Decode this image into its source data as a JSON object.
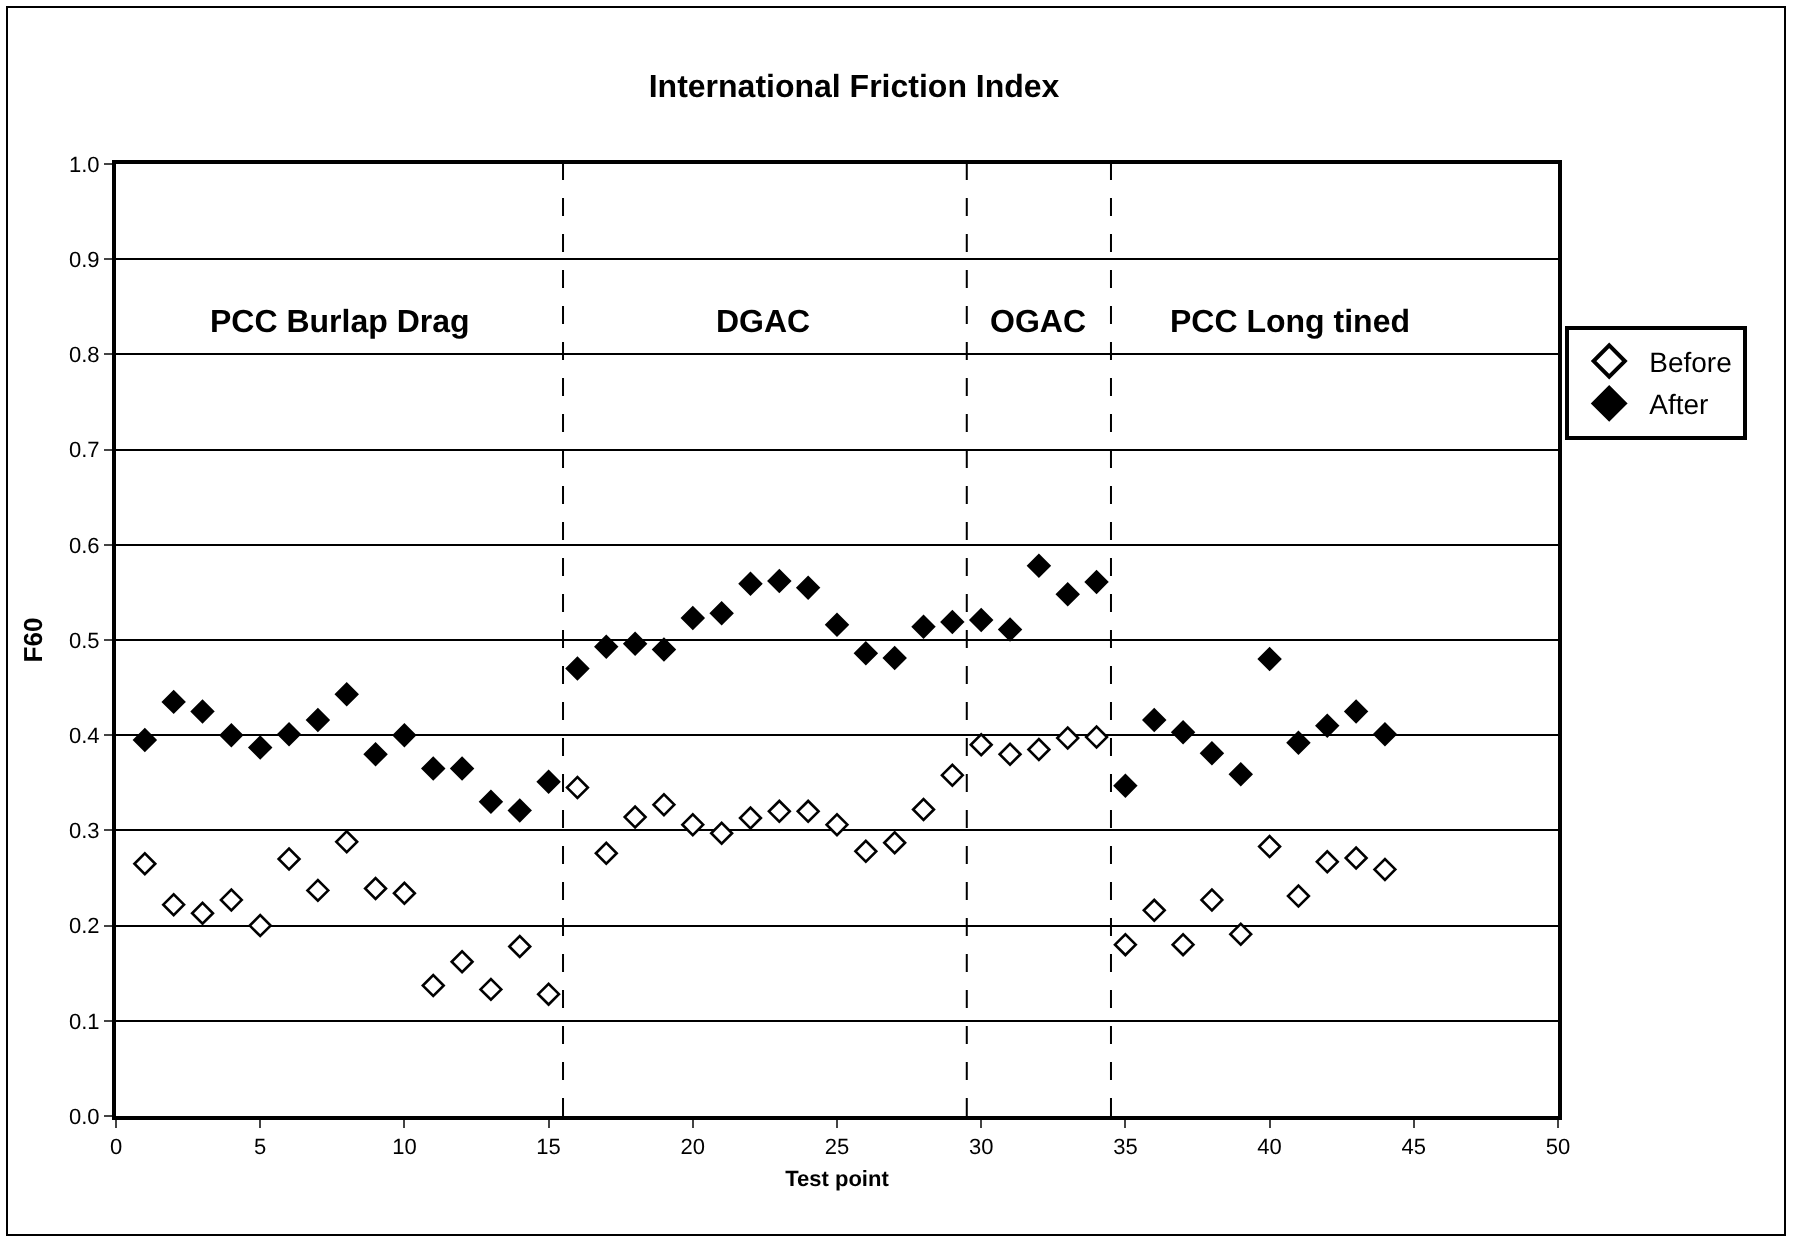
{
  "chart_data": {
    "type": "scatter",
    "title": "International Friction Index",
    "xlabel": "Test point",
    "ylabel": "F60",
    "x": [
      1,
      2,
      3,
      4,
      5,
      6,
      7,
      8,
      9,
      10,
      11,
      12,
      13,
      14,
      15,
      16,
      17,
      18,
      19,
      20,
      21,
      22,
      23,
      24,
      25,
      26,
      27,
      28,
      29,
      30,
      31,
      32,
      33,
      34,
      35,
      36,
      37,
      38,
      39,
      40,
      41,
      42,
      43,
      44
    ],
    "series": [
      {
        "name": "Before",
        "color": "#ffffff",
        "values": [
          0.265,
          0.222,
          0.213,
          0.227,
          0.2,
          0.27,
          0.237,
          0.288,
          0.239,
          0.234,
          0.137,
          0.162,
          0.133,
          0.178,
          0.128,
          0.345,
          0.276,
          0.314,
          0.327,
          0.306,
          0.297,
          0.313,
          0.32,
          0.32,
          0.306,
          0.278,
          0.287,
          0.322,
          0.358,
          0.39,
          0.38,
          0.385,
          0.397,
          0.398,
          0.18,
          0.216,
          0.18,
          0.227,
          0.191,
          0.283,
          0.231,
          0.267,
          0.271,
          0.259
        ]
      },
      {
        "name": "After",
        "color": "#000000",
        "values": [
          0.395,
          0.435,
          0.425,
          0.4,
          0.387,
          0.401,
          0.416,
          0.443,
          0.38,
          0.4,
          0.365,
          0.365,
          0.33,
          0.321,
          0.351,
          0.47,
          0.493,
          0.496,
          0.49,
          0.523,
          0.528,
          0.559,
          0.562,
          0.555,
          0.516,
          0.486,
          0.481,
          0.514,
          0.519,
          0.521,
          0.511,
          0.578,
          0.548,
          0.561,
          0.347,
          0.416,
          0.403,
          0.381,
          0.359,
          0.48,
          0.392,
          0.41,
          0.425,
          0.401
        ]
      }
    ],
    "marker": "diamond",
    "xlim": [
      0,
      50
    ],
    "xticks": [
      0,
      5,
      10,
      15,
      20,
      25,
      30,
      35,
      40,
      45,
      50
    ],
    "ylim": [
      0,
      1
    ],
    "yticks": [
      {
        "value": 0,
        "label": "0.0"
      },
      0.1,
      0.2,
      0.3,
      0.4,
      0.5,
      0.6,
      0.7,
      0.8,
      0.9,
      {
        "value": 1,
        "label": "1.0"
      }
    ],
    "grid": "y",
    "legend": "right",
    "ref_lines": [
      {
        "axis": "x",
        "value": 15.5,
        "line_style": "dashed",
        "color": "#000000"
      },
      {
        "axis": "x",
        "value": 29.5,
        "line_style": "dashed",
        "color": "#000000"
      },
      {
        "axis": "x",
        "value": 34.5,
        "line_style": "dashed",
        "color": "#000000"
      }
    ],
    "annotations": [
      "PCC Burlap Drag",
      "DGAC",
      "OGAC",
      "PCC Long tined"
    ]
  }
}
